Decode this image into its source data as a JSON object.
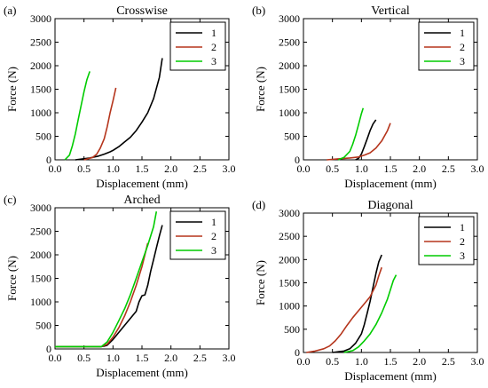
{
  "chart_data": [
    {
      "type": "line",
      "panel_label": "(a)",
      "title": "Crosswise",
      "xlabel": "Displacement (mm)",
      "ylabel": "Force (N)",
      "xlim": [
        0,
        3.0
      ],
      "ylim": [
        0,
        3000
      ],
      "xticks": [
        "0.0",
        "0.5",
        "1.0",
        "1.5",
        "2.0",
        "2.5",
        "3.0"
      ],
      "yticks": [
        "0",
        "500",
        "1000",
        "1500",
        "2000",
        "2500",
        "3000"
      ],
      "grid": false,
      "legend_position": "top-right",
      "series": [
        {
          "name": "1",
          "color": "#000000",
          "x": [
            0.35,
            0.6,
            0.75,
            0.85,
            0.95,
            1.0,
            1.1,
            1.2,
            1.3,
            1.4,
            1.5,
            1.6,
            1.7,
            1.8,
            1.85
          ],
          "y": [
            0,
            40,
            80,
            120,
            170,
            200,
            280,
            380,
            480,
            620,
            800,
            1000,
            1300,
            1750,
            2160
          ]
        },
        {
          "name": "2",
          "color": "#b5351c",
          "x": [
            0.5,
            0.65,
            0.72,
            0.78,
            0.85,
            0.9,
            0.95,
            1.0,
            1.05
          ],
          "y": [
            0,
            50,
            120,
            250,
            450,
            700,
            1000,
            1250,
            1530
          ]
        },
        {
          "name": "3",
          "color": "#00cc00",
          "x": [
            0.17,
            0.25,
            0.3,
            0.35,
            0.4,
            0.45,
            0.5,
            0.55,
            0.6
          ],
          "y": [
            0,
            100,
            300,
            550,
            850,
            1150,
            1450,
            1700,
            1880
          ]
        }
      ]
    },
    {
      "type": "line",
      "panel_label": "(b)",
      "title": "Vertical",
      "xlabel": "Displacement (mm)",
      "ylabel": "Force (N)",
      "xlim": [
        0,
        3.0
      ],
      "ylim": [
        0,
        3000
      ],
      "xticks": [
        "0.0",
        "0.5",
        "1.0",
        "1.5",
        "2.0",
        "2.5",
        "3.0"
      ],
      "yticks": [
        "0",
        "500",
        "1000",
        "1500",
        "2000",
        "2500",
        "3000"
      ],
      "grid": false,
      "legend_position": "top-right",
      "series": [
        {
          "name": "1",
          "color": "#000000",
          "x": [
            0.9,
            0.95,
            1.0,
            1.05,
            1.1,
            1.15,
            1.2,
            1.25
          ],
          "y": [
            0,
            30,
            120,
            280,
            450,
            620,
            760,
            850
          ]
        },
        {
          "name": "2",
          "color": "#b5351c",
          "x": [
            0.4,
            0.6,
            0.8,
            0.95,
            1.05,
            1.15,
            1.25,
            1.35,
            1.45,
            1.5
          ],
          "y": [
            0,
            20,
            40,
            60,
            100,
            150,
            250,
            400,
            620,
            780
          ]
        },
        {
          "name": "3",
          "color": "#00cc00",
          "x": [
            0.6,
            0.7,
            0.8,
            0.85,
            0.9,
            0.95,
            1.0,
            1.03
          ],
          "y": [
            0,
            50,
            180,
            330,
            520,
            750,
            980,
            1100
          ]
        }
      ]
    },
    {
      "type": "line",
      "panel_label": "(c)",
      "title": "Arched",
      "xlabel": "Displacement (mm)",
      "ylabel": "Force (N)",
      "xlim": [
        0,
        3.0
      ],
      "ylim": [
        0,
        3000
      ],
      "xticks": [
        "0.0",
        "0.5",
        "1.0",
        "1.5",
        "2.0",
        "2.5",
        "3.0"
      ],
      "yticks": [
        "0",
        "500",
        "1000",
        "1500",
        "2000",
        "2500",
        "3000"
      ],
      "grid": false,
      "legend_position": "top-right",
      "series": [
        {
          "name": "1",
          "color": "#000000",
          "x": [
            0.0,
            0.8,
            0.85,
            0.9,
            1.0,
            1.1,
            1.2,
            1.3,
            1.4,
            1.45,
            1.5,
            1.55,
            1.6,
            1.65,
            1.7,
            1.75,
            1.8,
            1.85
          ],
          "y": [
            50,
            50,
            60,
            80,
            200,
            350,
            500,
            650,
            800,
            1000,
            1130,
            1150,
            1350,
            1650,
            1900,
            2150,
            2400,
            2630
          ]
        },
        {
          "name": "2",
          "color": "#b5351c",
          "x": [
            0.0,
            0.8,
            0.9,
            1.0,
            1.1,
            1.2,
            1.3,
            1.4,
            1.5,
            1.55,
            1.6
          ],
          "y": [
            50,
            50,
            100,
            250,
            450,
            700,
            1000,
            1350,
            1750,
            2000,
            2250
          ]
        },
        {
          "name": "3",
          "color": "#00cc00",
          "x": [
            0.0,
            0.8,
            0.9,
            1.0,
            1.1,
            1.2,
            1.3,
            1.4,
            1.5,
            1.6,
            1.7,
            1.75
          ],
          "y": [
            50,
            50,
            150,
            350,
            600,
            850,
            1150,
            1500,
            1850,
            2200,
            2600,
            2920
          ]
        }
      ]
    },
    {
      "type": "line",
      "panel_label": "(d)",
      "title": "Diagonal",
      "xlabel": "Displacement (mm)",
      "ylabel": "Force (N)",
      "xlim": [
        0,
        3.0
      ],
      "ylim": [
        0,
        3000
      ],
      "xticks": [
        "0.0",
        "0.5",
        "1.0",
        "1.5",
        "2.0",
        "2.5",
        "3.0"
      ],
      "yticks": [
        "0",
        "500",
        "1000",
        "1500",
        "2000",
        "2500",
        "3000"
      ],
      "grid": false,
      "legend_position": "top-right",
      "series": [
        {
          "name": "1",
          "color": "#000000",
          "x": [
            0.5,
            0.7,
            0.8,
            0.9,
            1.0,
            1.05,
            1.1,
            1.15,
            1.2,
            1.25,
            1.3,
            1.35
          ],
          "y": [
            0,
            30,
            80,
            200,
            400,
            600,
            850,
            1100,
            1400,
            1700,
            1950,
            2100
          ]
        },
        {
          "name": "2",
          "color": "#b5351c",
          "x": [
            0.05,
            0.2,
            0.35,
            0.45,
            0.55,
            0.65,
            0.75,
            0.85,
            0.95,
            1.05,
            1.15,
            1.25,
            1.3,
            1.35
          ],
          "y": [
            0,
            30,
            80,
            140,
            250,
            400,
            580,
            750,
            900,
            1050,
            1200,
            1450,
            1650,
            1830
          ]
        },
        {
          "name": "3",
          "color": "#00cc00",
          "x": [
            0.7,
            0.85,
            0.95,
            1.05,
            1.15,
            1.25,
            1.35,
            1.45,
            1.5,
            1.55,
            1.6
          ],
          "y": [
            0,
            40,
            120,
            250,
            400,
            600,
            850,
            1150,
            1350,
            1550,
            1670
          ]
        }
      ]
    }
  ]
}
